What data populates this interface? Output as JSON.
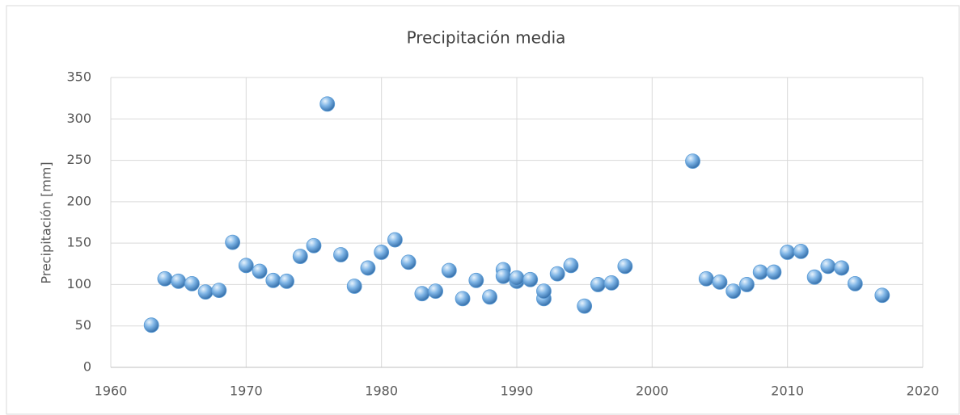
{
  "chart_data": {
    "type": "scatter",
    "title": "Precipitación media",
    "y_label": "Precipitación [mm]",
    "x": [
      1963,
      1964,
      1965,
      1966,
      1967,
      1968,
      1969,
      1970,
      1971,
      1972,
      1973,
      1974,
      1975,
      1976,
      1977,
      1978,
      1979,
      1980,
      1981,
      1982,
      1983,
      1984,
      1985,
      1986,
      1987,
      1988,
      1989,
      1989,
      1990,
      1990,
      1991,
      1992,
      1992,
      1993,
      1994,
      1995,
      1996,
      1997,
      1998,
      2003,
      2004,
      2005,
      2006,
      2007,
      2008,
      2009,
      2010,
      2011,
      2012,
      2013,
      2014,
      2015,
      2017
    ],
    "values": [
      51,
      107,
      104,
      101,
      91,
      93,
      151,
      123,
      116,
      105,
      104,
      134,
      147,
      318,
      136,
      98,
      120,
      139,
      154,
      127,
      89,
      92,
      117,
      83,
      105,
      85,
      118,
      110,
      104,
      108,
      106,
      83,
      92,
      113,
      123,
      74,
      100,
      102,
      122,
      249,
      107,
      103,
      92,
      100,
      115,
      115,
      139,
      140,
      109,
      122,
      120,
      101,
      87
    ],
    "color": "#5b9bd5",
    "xlim": [
      1960,
      2020
    ],
    "xticks": [
      1960,
      1970,
      1980,
      1990,
      2000,
      2010,
      2020
    ],
    "ylim": [
      0,
      350
    ],
    "yticks": [
      0,
      50,
      100,
      150,
      200,
      250,
      300,
      350
    ],
    "grid": true
  }
}
